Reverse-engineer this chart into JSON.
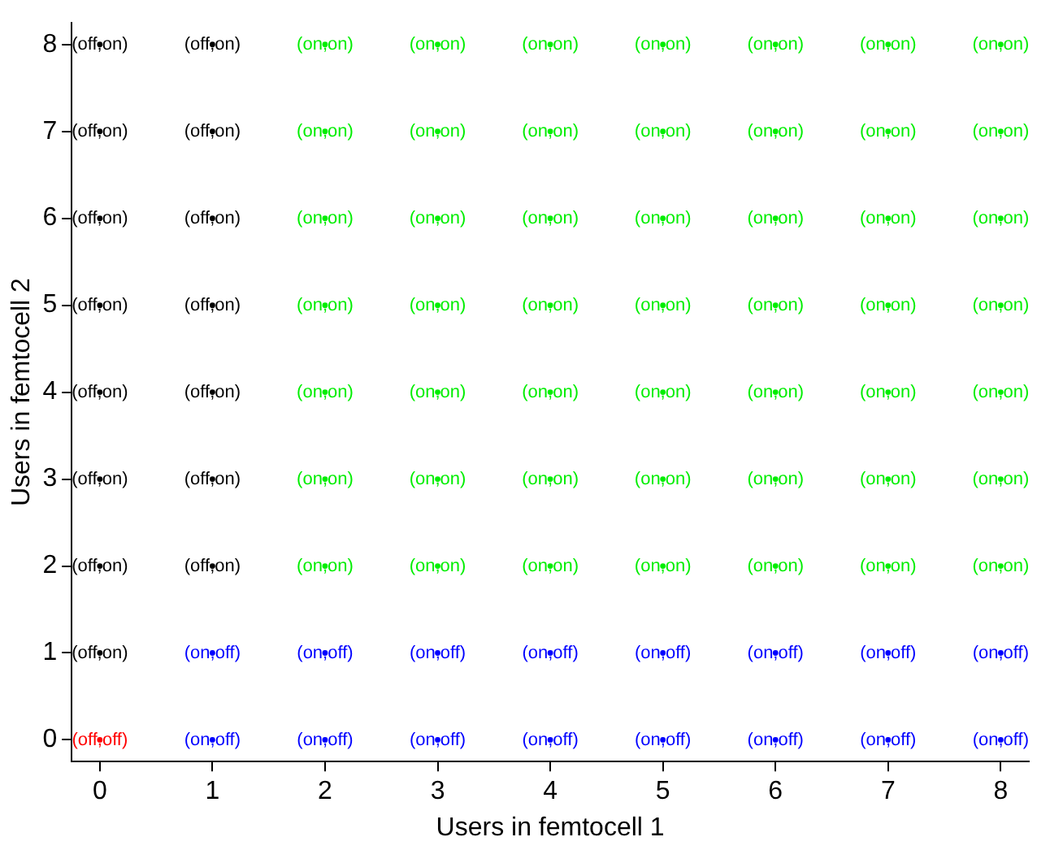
{
  "chart_data": {
    "type": "scatter",
    "xlabel": "Users in femtocell 1",
    "ylabel": "Users in femtocell 2",
    "xlim": [
      -0.25,
      8.25
    ],
    "ylim": [
      -0.25,
      8.25
    ],
    "xticks": [
      0,
      1,
      2,
      3,
      4,
      5,
      6,
      7,
      8
    ],
    "yticks": [
      0,
      1,
      2,
      3,
      4,
      5,
      6,
      7,
      8
    ],
    "grid": false,
    "legend": false,
    "marker": "circle",
    "series": [
      {
        "color": "#ff0000",
        "x": [
          0
        ],
        "values": [
          0
        ],
        "value_labels": [
          "(off,off)"
        ]
      },
      {
        "color": "#000000",
        "x": [
          0,
          0,
          0,
          0,
          0,
          0,
          0,
          0,
          1,
          1,
          1,
          1,
          1,
          1,
          1
        ],
        "values": [
          1,
          2,
          3,
          4,
          5,
          6,
          7,
          8,
          2,
          3,
          4,
          5,
          6,
          7,
          8
        ],
        "value_labels": [
          "(off,on)",
          "(off,on)",
          "(off,on)",
          "(off,on)",
          "(off,on)",
          "(off,on)",
          "(off,on)",
          "(off,on)",
          "(off,on)",
          "(off,on)",
          "(off,on)",
          "(off,on)",
          "(off,on)",
          "(off,on)",
          "(off,on)"
        ]
      },
      {
        "color": "#0000ff",
        "x": [
          1,
          2,
          3,
          4,
          5,
          6,
          7,
          8,
          1,
          2,
          3,
          4,
          5,
          6,
          7,
          8
        ],
        "values": [
          0,
          0,
          0,
          0,
          0,
          0,
          0,
          0,
          1,
          1,
          1,
          1,
          1,
          1,
          1,
          1
        ],
        "value_labels": [
          "(on,off)",
          "(on,off)",
          "(on,off)",
          "(on,off)",
          "(on,off)",
          "(on,off)",
          "(on,off)",
          "(on,off)",
          "(on,off)",
          "(on,off)",
          "(on,off)",
          "(on,off)",
          "(on,off)",
          "(on,off)",
          "(on,off)",
          "(on,off)"
        ]
      },
      {
        "color": "#00ee00",
        "x": [
          2,
          3,
          4,
          5,
          6,
          7,
          8,
          2,
          3,
          4,
          5,
          6,
          7,
          8,
          2,
          3,
          4,
          5,
          6,
          7,
          8,
          2,
          3,
          4,
          5,
          6,
          7,
          8,
          2,
          3,
          4,
          5,
          6,
          7,
          8,
          2,
          3,
          4,
          5,
          6,
          7,
          8,
          2,
          3,
          4,
          5,
          6,
          7,
          8
        ],
        "values": [
          2,
          2,
          2,
          2,
          2,
          2,
          2,
          3,
          3,
          3,
          3,
          3,
          3,
          3,
          4,
          4,
          4,
          4,
          4,
          4,
          4,
          5,
          5,
          5,
          5,
          5,
          5,
          5,
          6,
          6,
          6,
          6,
          6,
          6,
          6,
          7,
          7,
          7,
          7,
          7,
          7,
          7,
          8,
          8,
          8,
          8,
          8,
          8,
          8
        ],
        "value_labels": [
          "(on,on)",
          "(on,on)",
          "(on,on)",
          "(on,on)",
          "(on,on)",
          "(on,on)",
          "(on,on)",
          "(on,on)",
          "(on,on)",
          "(on,on)",
          "(on,on)",
          "(on,on)",
          "(on,on)",
          "(on,on)",
          "(on,on)",
          "(on,on)",
          "(on,on)",
          "(on,on)",
          "(on,on)",
          "(on,on)",
          "(on,on)",
          "(on,on)",
          "(on,on)",
          "(on,on)",
          "(on,on)",
          "(on,on)",
          "(on,on)",
          "(on,on)",
          "(on,on)",
          "(on,on)",
          "(on,on)",
          "(on,on)",
          "(on,on)",
          "(on,on)",
          "(on,on)",
          "(on,on)",
          "(on,on)",
          "(on,on)",
          "(on,on)",
          "(on,on)",
          "(on,on)",
          "(on,on)",
          "(on,on)",
          "(on,on)",
          "(on,on)",
          "(on,on)",
          "(on,on)",
          "(on,on)",
          "(on,on)"
        ]
      }
    ]
  }
}
